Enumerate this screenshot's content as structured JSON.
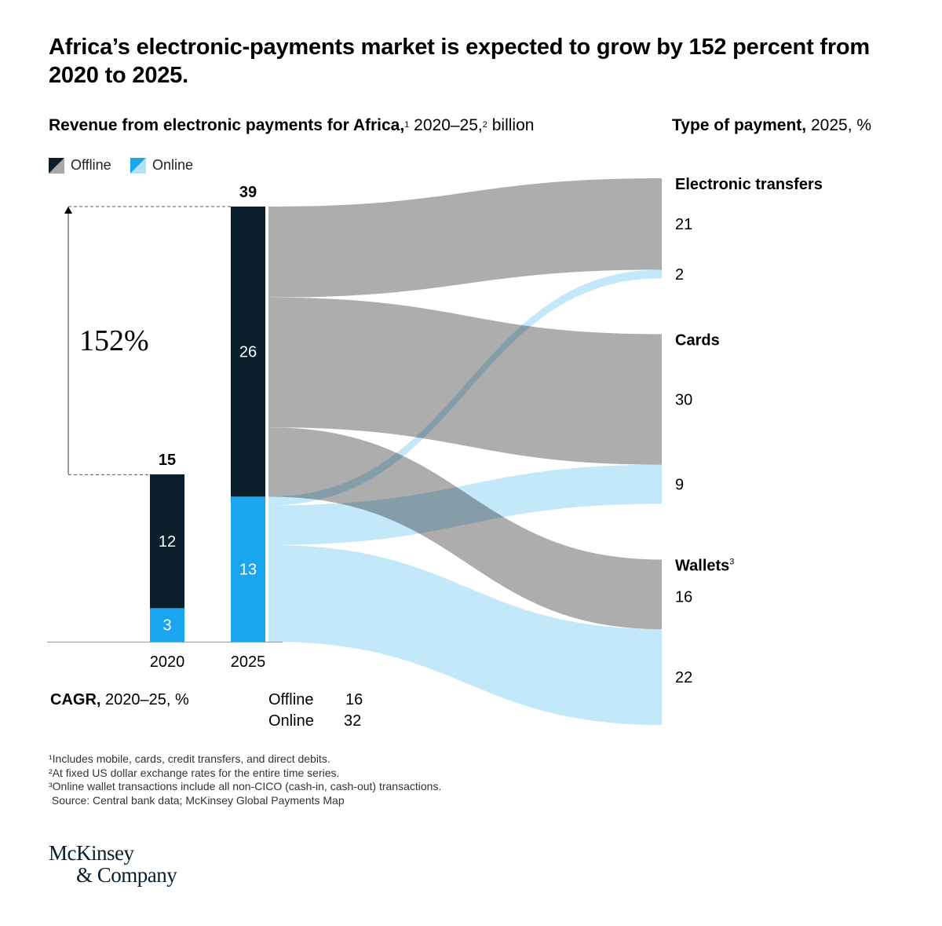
{
  "title": "Africa’s electronic-payments market is expected to grow by 152 percent from 2020 to 2025.",
  "subtitle": {
    "bold": "Revenue from electronic payments for Africa,",
    "sup1": "1",
    "mid": " 2020–25,",
    "sup2": "2",
    "rest": " billion"
  },
  "payment_type_header": {
    "bold": "Type of payment,",
    "rest": " 2025, %"
  },
  "legend": [
    {
      "label": "Offline",
      "color": "#0a1e2b",
      "flow_color": "#a9a9a9"
    },
    {
      "label": "Online",
      "color": "#1aa6ef",
      "flow_color": "#b3e2f8"
    }
  ],
  "growth_label": "152%",
  "cagr": {
    "label_bold": "CAGR,",
    "label_rest": " 2020–25, %",
    "rows": [
      {
        "name": "Offline",
        "value": "16"
      },
      {
        "name": "Online",
        "value": "32"
      }
    ]
  },
  "footnotes": [
    "¹Includes mobile, cards, credit transfers, and direct debits.",
    "²At fixed US dollar exchange rates for the entire time series.",
    "³Online wallet transactions include all non-CICO (cash-in, cash-out) transactions.",
    " Source: Central bank data; McKinsey Global Payments Map"
  ],
  "logo": {
    "line1": "McKinsey",
    "line2": "& Company"
  },
  "chart_data": {
    "type": "bar",
    "subtype": "stacked bar with sankey flows",
    "categories": [
      "2020",
      "2025"
    ],
    "series": [
      {
        "name": "Offline",
        "values": [
          12,
          26
        ]
      },
      {
        "name": "Online",
        "values": [
          3,
          13
        ]
      }
    ],
    "totals": [
      "15",
      "39"
    ],
    "growth_percent": 152,
    "flows_2025": {
      "groups": [
        {
          "name": "Electronic transfers",
          "sup": "",
          "offline_pct": 21,
          "online_pct": 2
        },
        {
          "name": "Cards",
          "sup": "",
          "offline_pct": 30,
          "online_pct": 9
        },
        {
          "name": "Wallets",
          "sup": "3",
          "offline_pct": 16,
          "online_pct": 22
        }
      ]
    },
    "colors": {
      "offline_bar": "#0a1e2b",
      "online_bar": "#1aa6ef",
      "offline_flow": "#a9a9a9",
      "online_flow": "#b3e2f8"
    }
  }
}
